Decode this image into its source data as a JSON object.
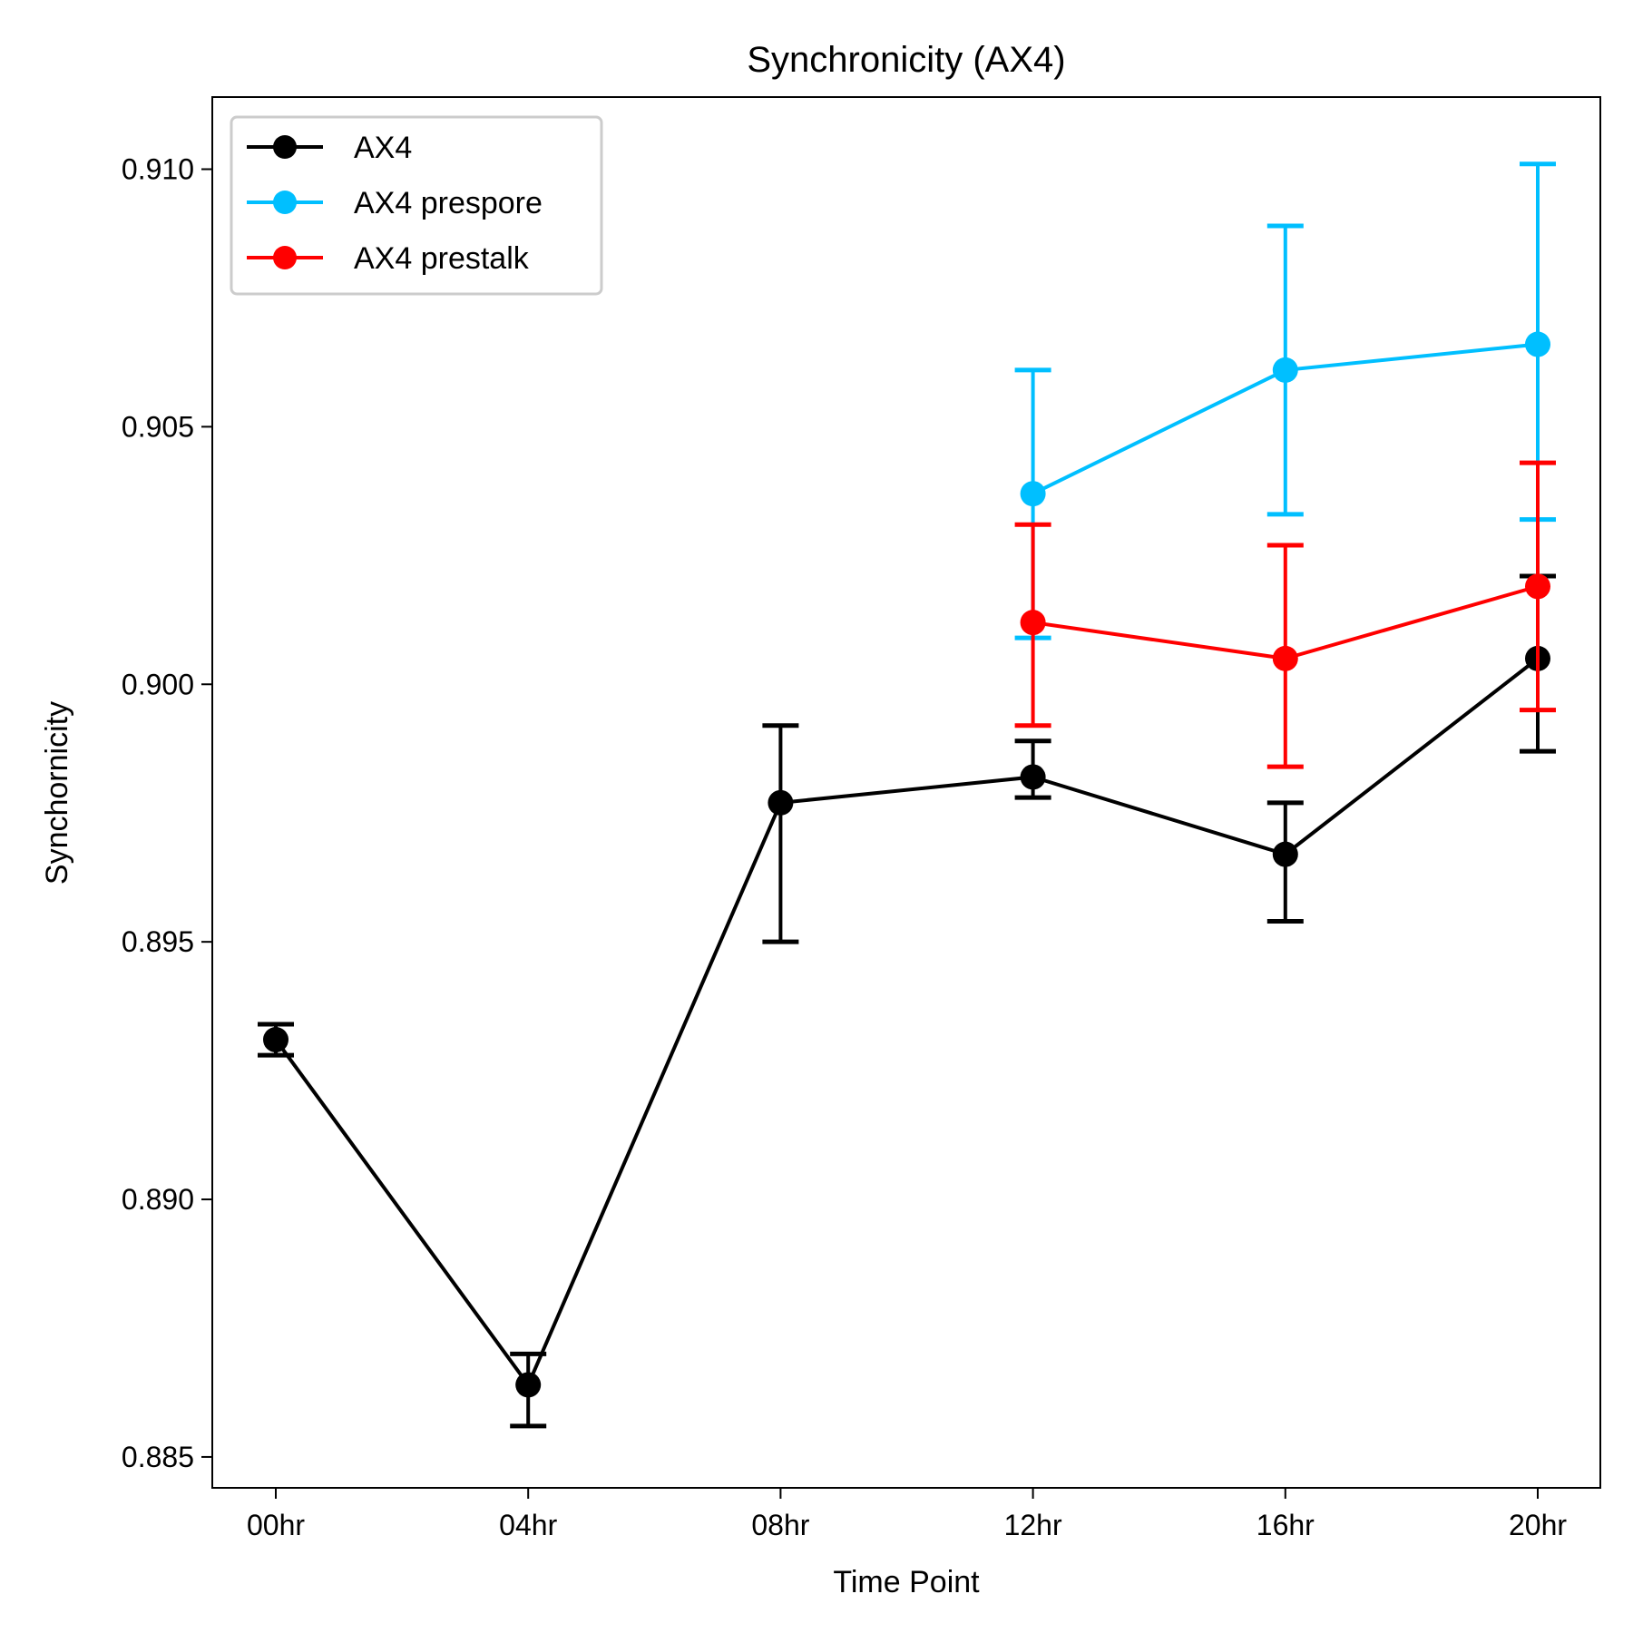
{
  "chart_data": {
    "type": "line",
    "title": "Synchronicity (AX4)",
    "xlabel": "Time Point",
    "ylabel": "Synchornicity",
    "categories": [
      "00hr",
      "04hr",
      "08hr",
      "12hr",
      "16hr",
      "20hr"
    ],
    "ylim": [
      0.8844,
      0.9114
    ],
    "yticks": [
      0.885,
      0.89,
      0.895,
      0.9,
      0.905,
      0.91
    ],
    "ytick_labels": [
      "0.885",
      "0.890",
      "0.895",
      "0.900",
      "0.905",
      "0.910"
    ],
    "grid": false,
    "legend_position": "top-left",
    "series": [
      {
        "name": "AX4",
        "color": "#000000",
        "values": [
          0.8931,
          0.8864,
          0.8977,
          0.8982,
          0.8967,
          0.9005
        ],
        "err_low": [
          0.8928,
          0.8856,
          0.895,
          0.8978,
          0.8954,
          0.8987
        ],
        "err_high": [
          0.8934,
          0.887,
          0.8992,
          0.8989,
          0.8977,
          0.9021
        ]
      },
      {
        "name": "AX4 prespore",
        "color": "#00bfff",
        "values": [
          null,
          null,
          null,
          0.9037,
          0.9061,
          0.9066
        ],
        "err_low": [
          null,
          null,
          null,
          0.9009,
          0.9033,
          0.9032
        ],
        "err_high": [
          null,
          null,
          null,
          0.9061,
          0.9089,
          0.9101
        ]
      },
      {
        "name": "AX4 prestalk",
        "color": "#ff0000",
        "values": [
          null,
          null,
          null,
          0.9012,
          0.9005,
          0.9019
        ],
        "err_low": [
          null,
          null,
          null,
          0.8992,
          0.8984,
          0.8995
        ],
        "err_high": [
          null,
          null,
          null,
          0.9031,
          0.9027,
          0.9043
        ]
      }
    ]
  }
}
